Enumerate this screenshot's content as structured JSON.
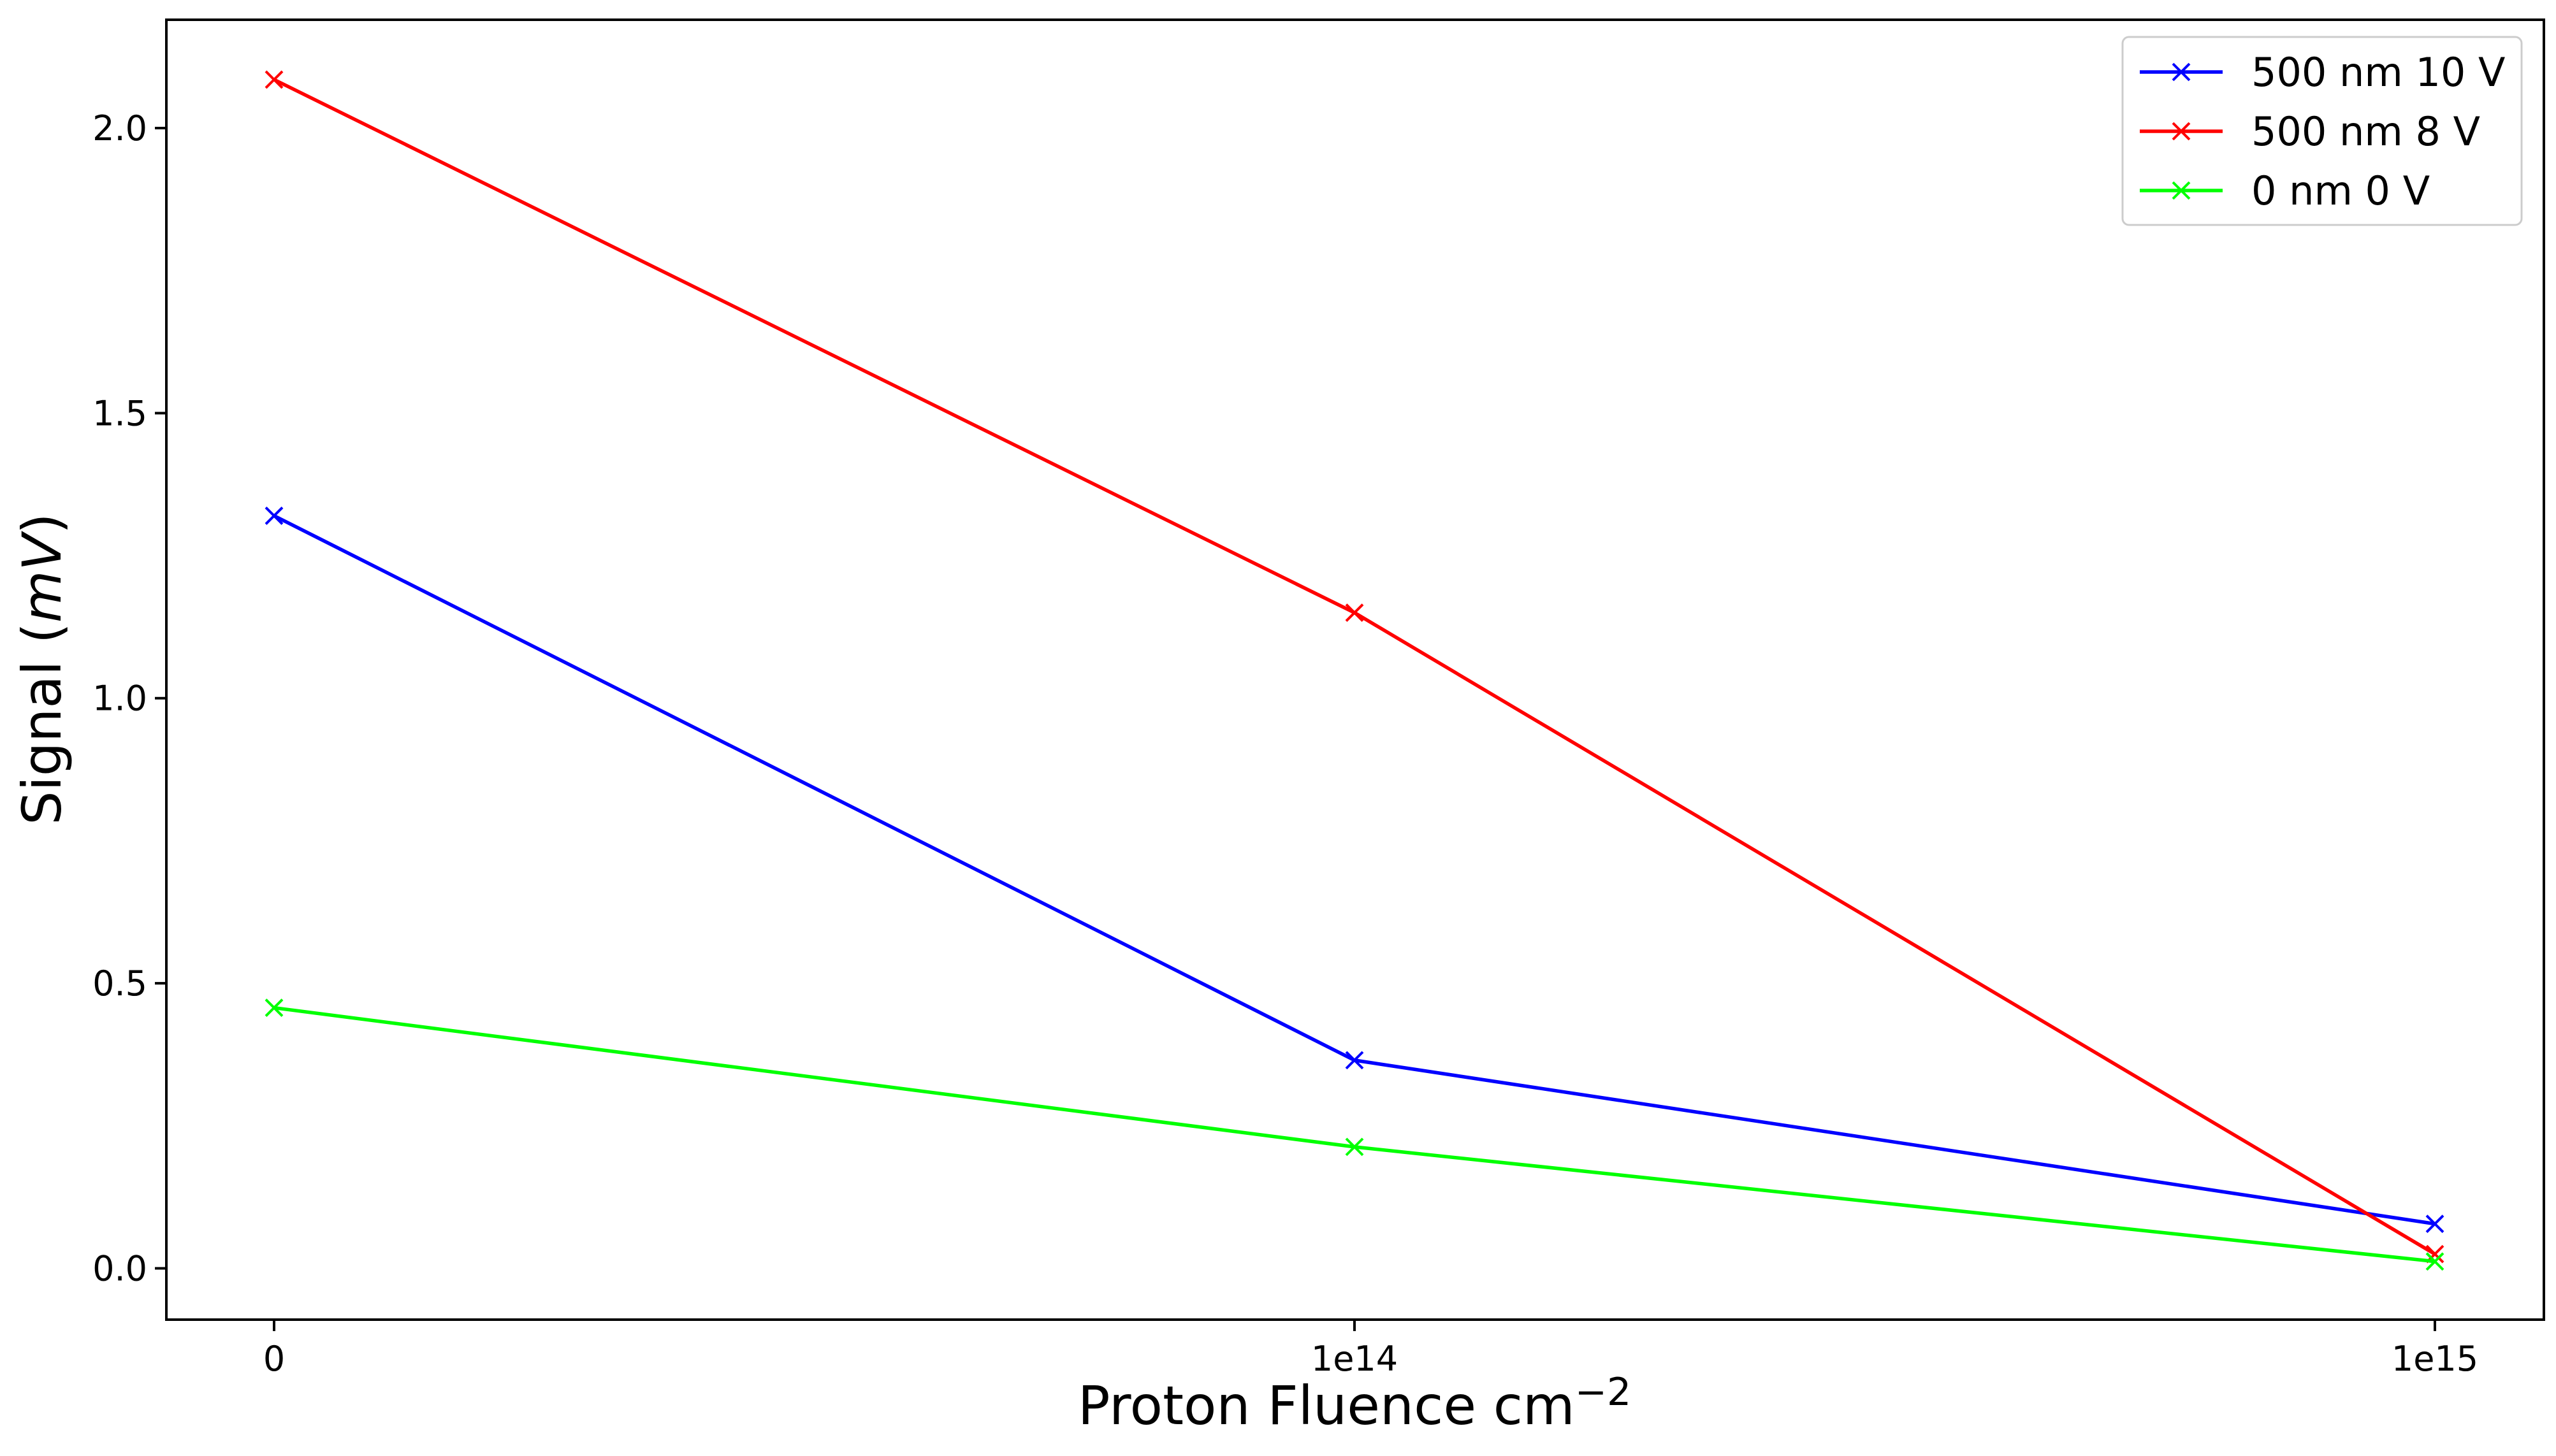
{
  "chart_data": {
    "type": "line",
    "xlabel": "Proton Fluence cm",
    "xlabel_exponent": "−2",
    "ylabel_prefix": "Signal (",
    "ylabel_unit": "mV",
    "ylabel_suffix": ")",
    "categories": [
      "0",
      "1e14",
      "1e15"
    ],
    "ylim": [
      -0.09,
      2.19
    ],
    "yticks": [
      "0.0",
      "0.5",
      "1.0",
      "1.5",
      "2.0"
    ],
    "grid": false,
    "legend_position": "top-right",
    "marker": "x",
    "series": [
      {
        "name": "500 nm 10 V",
        "color": "#0000ff",
        "values": [
          1.32,
          0.365,
          0.078
        ]
      },
      {
        "name": "500 nm 8 V",
        "color": "#ff0000",
        "values": [
          2.085,
          1.15,
          0.025
        ]
      },
      {
        "name": "0 nm 0 V",
        "color": "#00ff00",
        "values": [
          0.457,
          0.213,
          0.012
        ]
      }
    ]
  }
}
